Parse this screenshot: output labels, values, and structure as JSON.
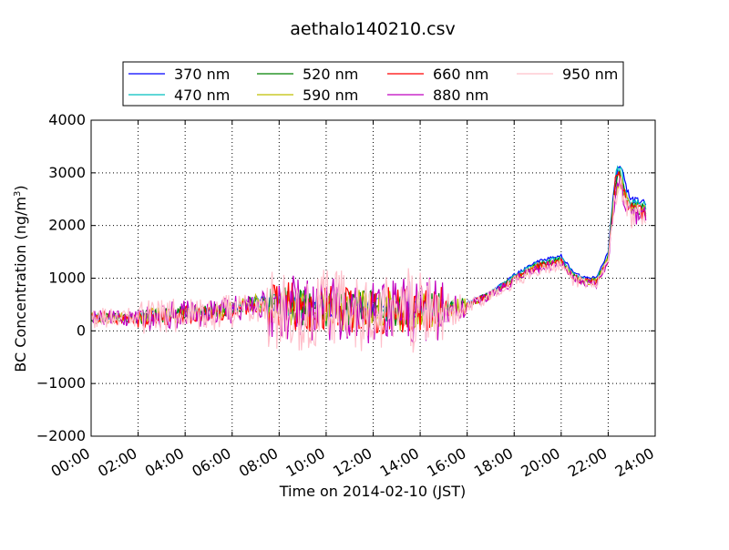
{
  "chart_data": {
    "type": "line",
    "title": "aethalo140210.csv",
    "xlabel": "Time on 2014-02-10 (JST)",
    "ylabel_main": "BC Concentration (ng/m",
    "ylabel_sup": "3",
    "ylabel_end": ")",
    "xlim": [
      0,
      24
    ],
    "ylim": [
      -2000,
      4000
    ],
    "x_ticks": [
      0,
      2,
      4,
      6,
      8,
      10,
      12,
      14,
      16,
      18,
      20,
      22,
      24
    ],
    "x_tick_labels": [
      "00:00",
      "02:00",
      "04:00",
      "06:00",
      "08:00",
      "10:00",
      "12:00",
      "14:00",
      "16:00",
      "18:00",
      "20:00",
      "22:00",
      "24:00"
    ],
    "y_ticks": [
      -2000,
      -1000,
      0,
      1000,
      2000,
      3000,
      4000
    ],
    "y_tick_labels": [
      "−2000",
      "−1000",
      "0",
      "1000",
      "2000",
      "3000",
      "4000"
    ],
    "grid": true,
    "legend_position": "top-center",
    "baseline": {
      "x": [
        0,
        1,
        2,
        3,
        4,
        5,
        6,
        7,
        8,
        9,
        10,
        11,
        12,
        13,
        14,
        15,
        16,
        17,
        18,
        19,
        20,
        20.5,
        21,
        21.5,
        22,
        22.3,
        22.5,
        22.8,
        23,
        23.5
      ],
      "y": [
        250,
        250,
        250,
        300,
        330,
        350,
        420,
        550,
        500,
        450,
        420,
        420,
        400,
        400,
        420,
        420,
        500,
        700,
        1000,
        1250,
        1350,
        1050,
        950,
        950,
        1400,
        2800,
        3000,
        2500,
        2350,
        2300
      ]
    },
    "series": [
      {
        "name": "370 nm",
        "color": "#0000ff",
        "scale": 1.06,
        "noise": 80
      },
      {
        "name": "470 nm",
        "color": "#00bfbf",
        "scale": 1.03,
        "noise": 110
      },
      {
        "name": "520 nm",
        "color": "#008000",
        "scale": 1.0,
        "noise": 150
      },
      {
        "name": "590 nm",
        "color": "#bfbf00",
        "scale": 0.98,
        "noise": 170
      },
      {
        "name": "660 nm",
        "color": "#ff0000",
        "scale": 0.97,
        "noise": 190
      },
      {
        "name": "880 nm",
        "color": "#bf00bf",
        "scale": 0.95,
        "noise": 260
      },
      {
        "name": "950 nm",
        "color": "#ffc0cb",
        "scale": 0.93,
        "noise": 340
      }
    ]
  }
}
